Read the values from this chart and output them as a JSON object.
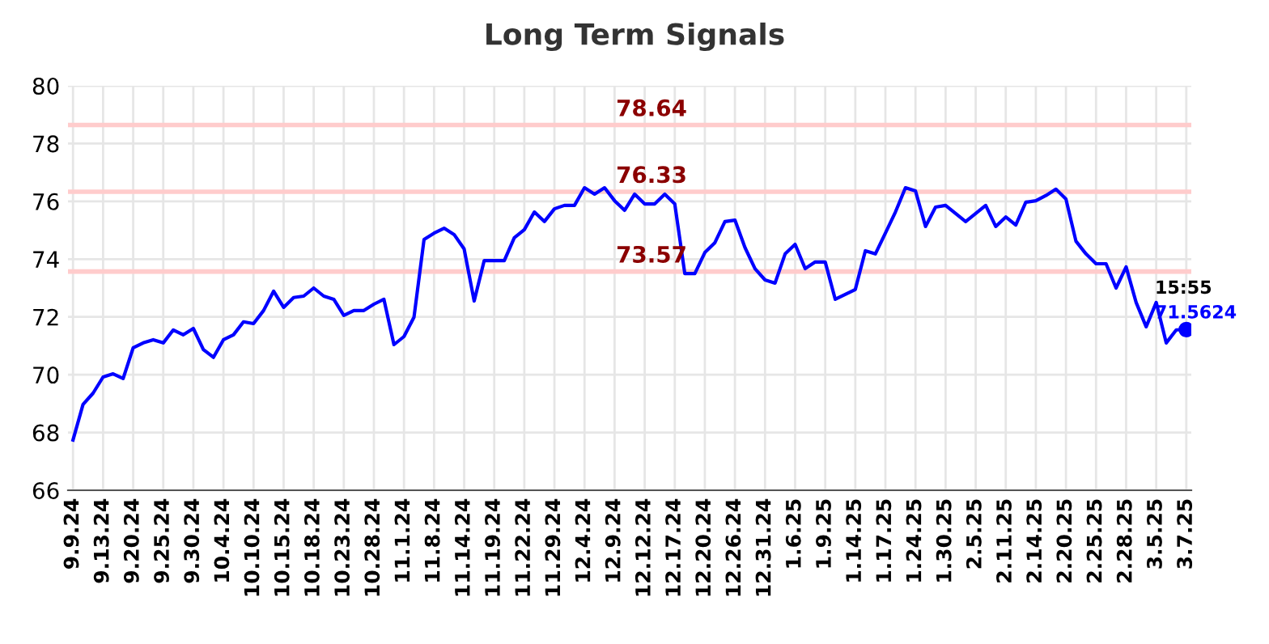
{
  "chart_data": {
    "type": "line",
    "title": "Long Term Signals",
    "categories": [
      "9.9.24",
      null,
      null,
      "9.13.24",
      null,
      null,
      "9.20.24",
      null,
      null,
      "9.25.24",
      null,
      null,
      "9.30.24",
      null,
      null,
      "10.4.24",
      null,
      null,
      "10.10.24",
      null,
      null,
      "10.15.24",
      null,
      null,
      "10.18.24",
      null,
      null,
      "10.23.24",
      null,
      null,
      "10.28.24",
      null,
      null,
      "11.1.24",
      null,
      null,
      "11.8.24",
      null,
      null,
      "11.14.24",
      null,
      null,
      "11.19.24",
      null,
      null,
      "11.22.24",
      null,
      null,
      "11.29.24",
      null,
      null,
      "12.4.24",
      null,
      null,
      "12.9.24",
      null,
      null,
      "12.12.24",
      null,
      null,
      "12.17.24",
      null,
      null,
      "12.20.24",
      null,
      null,
      "12.26.24",
      null,
      null,
      "12.31.24",
      null,
      null,
      "1.6.25",
      null,
      null,
      "1.9.25",
      null,
      null,
      "1.14.25",
      null,
      null,
      "1.17.25",
      null,
      null,
      "1.24.25",
      null,
      null,
      "1.30.25",
      null,
      null,
      "2.5.25",
      null,
      null,
      "2.11.25",
      null,
      null,
      "2.14.25",
      null,
      null,
      "2.20.25",
      null,
      null,
      "2.25.25",
      null,
      null,
      "2.28.25",
      null,
      null,
      "3.5.25",
      null,
      null,
      "3.7.25"
    ],
    "series": [
      {
        "color": "#0000ff",
        "values": [
          67.74,
          68.97,
          69.36,
          69.92,
          70.03,
          69.87,
          70.93,
          71.1,
          71.21,
          71.1,
          71.55,
          71.38,
          71.6,
          70.87,
          70.6,
          71.21,
          71.38,
          71.83,
          71.77,
          72.22,
          72.89,
          72.33,
          72.67,
          72.72,
          73.0,
          72.72,
          72.61,
          72.05,
          72.22,
          72.22,
          72.44,
          72.61,
          71.04,
          71.32,
          71.99,
          74.68,
          74.9,
          75.07,
          74.85,
          74.35,
          72.55,
          73.95,
          73.95,
          73.95,
          74.74,
          75.02,
          75.63,
          75.3,
          75.74,
          75.86,
          75.86,
          76.47,
          76.25,
          76.47,
          76.02,
          75.69,
          76.25,
          75.91,
          75.91,
          76.25,
          75.91,
          73.5,
          73.5,
          74.23,
          74.57,
          75.3,
          75.35,
          74.4,
          73.67,
          73.28,
          73.17,
          74.18,
          74.51,
          73.67,
          73.9,
          73.9,
          72.61,
          72.78,
          72.95,
          74.29,
          74.18,
          74.9,
          75.63,
          76.47,
          76.36,
          75.13,
          75.8,
          75.86,
          75.58,
          75.3,
          75.58,
          75.86,
          75.13,
          75.46,
          75.18,
          75.97,
          76.02,
          76.2,
          76.42,
          76.08,
          74.62,
          74.18,
          73.84,
          73.84,
          73.0,
          73.73,
          72.5,
          71.66,
          72.5,
          71.1,
          71.55,
          71.5624
        ]
      },
      {
        "type": "scatter",
        "color": "#0000ff",
        "marker": "circle",
        "x": [
          "3.7.25"
        ],
        "values": [
          71.5624
        ]
      }
    ],
    "ylim": [
      66,
      80
    ],
    "yticks": [
      66,
      68,
      70,
      72,
      74,
      76,
      78,
      80
    ],
    "grid": true,
    "ref_lines": [
      {
        "axis": "y",
        "value": 78.64,
        "label": "78.64",
        "color": "#ffcccc"
      },
      {
        "axis": "y",
        "value": 76.33,
        "label": "76.33",
        "color": "#ffcccc"
      },
      {
        "axis": "y",
        "value": 73.57,
        "label": "73.57",
        "color": "#ffcccc"
      }
    ],
    "annotations": [
      {
        "text": "15:55",
        "x": "3.7.25",
        "y": 71.5624
      },
      {
        "text": "71.5624",
        "x": "3.7.25",
        "y": 71.5624
      }
    ]
  }
}
